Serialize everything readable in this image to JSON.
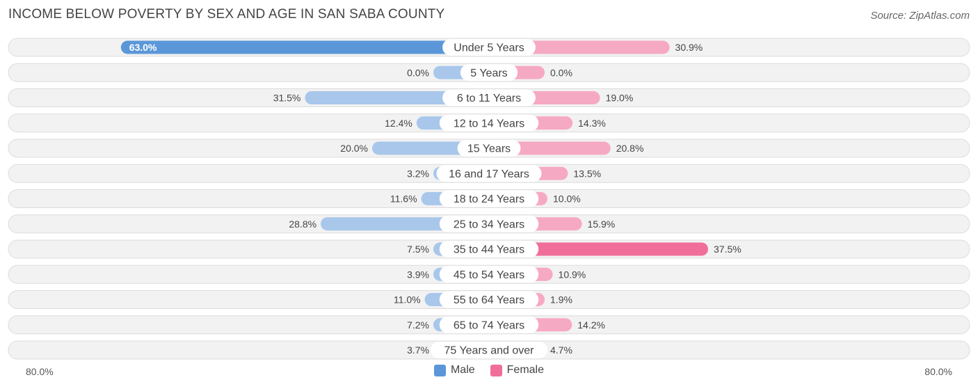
{
  "header": {
    "title": "INCOME BELOW POVERTY BY SEX AND AGE IN SAN SABA COUNTY",
    "source": "Source: ZipAtlas.com"
  },
  "colors": {
    "male_dark": "#5b97d8",
    "male_light": "#a8c7eb",
    "female_dark": "#f06e99",
    "female_light": "#f6a9c3",
    "row_bg": "#f2f2f2",
    "row_border": "#dcdcdc"
  },
  "legend": {
    "male_label": "Male",
    "female_label": "Female"
  },
  "axis": {
    "left_label": "80.0%",
    "right_label": "80.0%"
  },
  "chart_data": {
    "type": "bar",
    "orientation": "diverging-horizontal",
    "title": "INCOME BELOW POVERTY BY SEX AND AGE IN SAN SABA COUNTY",
    "xlim": [
      -80,
      80
    ],
    "categories": [
      "Under 5 Years",
      "5 Years",
      "6 to 11 Years",
      "12 to 14 Years",
      "15 Years",
      "16 and 17 Years",
      "18 to 24 Years",
      "25 to 34 Years",
      "35 to 44 Years",
      "45 to 54 Years",
      "55 to 64 Years",
      "65 to 74 Years",
      "75 Years and over"
    ],
    "series": [
      {
        "name": "Male",
        "values": [
          63.0,
          0.0,
          31.5,
          12.4,
          20.0,
          3.2,
          11.6,
          28.8,
          7.5,
          3.9,
          11.0,
          7.2,
          3.7
        ],
        "labels": [
          "63.0%",
          "0.0%",
          "31.5%",
          "12.4%",
          "20.0%",
          "3.2%",
          "11.6%",
          "28.8%",
          "7.5%",
          "3.9%",
          "11.0%",
          "7.2%",
          "3.7%"
        ]
      },
      {
        "name": "Female",
        "values": [
          30.9,
          0.0,
          19.0,
          14.3,
          20.8,
          13.5,
          10.0,
          15.9,
          37.5,
          10.9,
          1.9,
          14.2,
          4.7
        ],
        "labels": [
          "30.9%",
          "0.0%",
          "19.0%",
          "14.3%",
          "20.8%",
          "13.5%",
          "10.0%",
          "15.9%",
          "37.5%",
          "10.9%",
          "1.9%",
          "14.2%",
          "4.7%"
        ]
      }
    ]
  }
}
